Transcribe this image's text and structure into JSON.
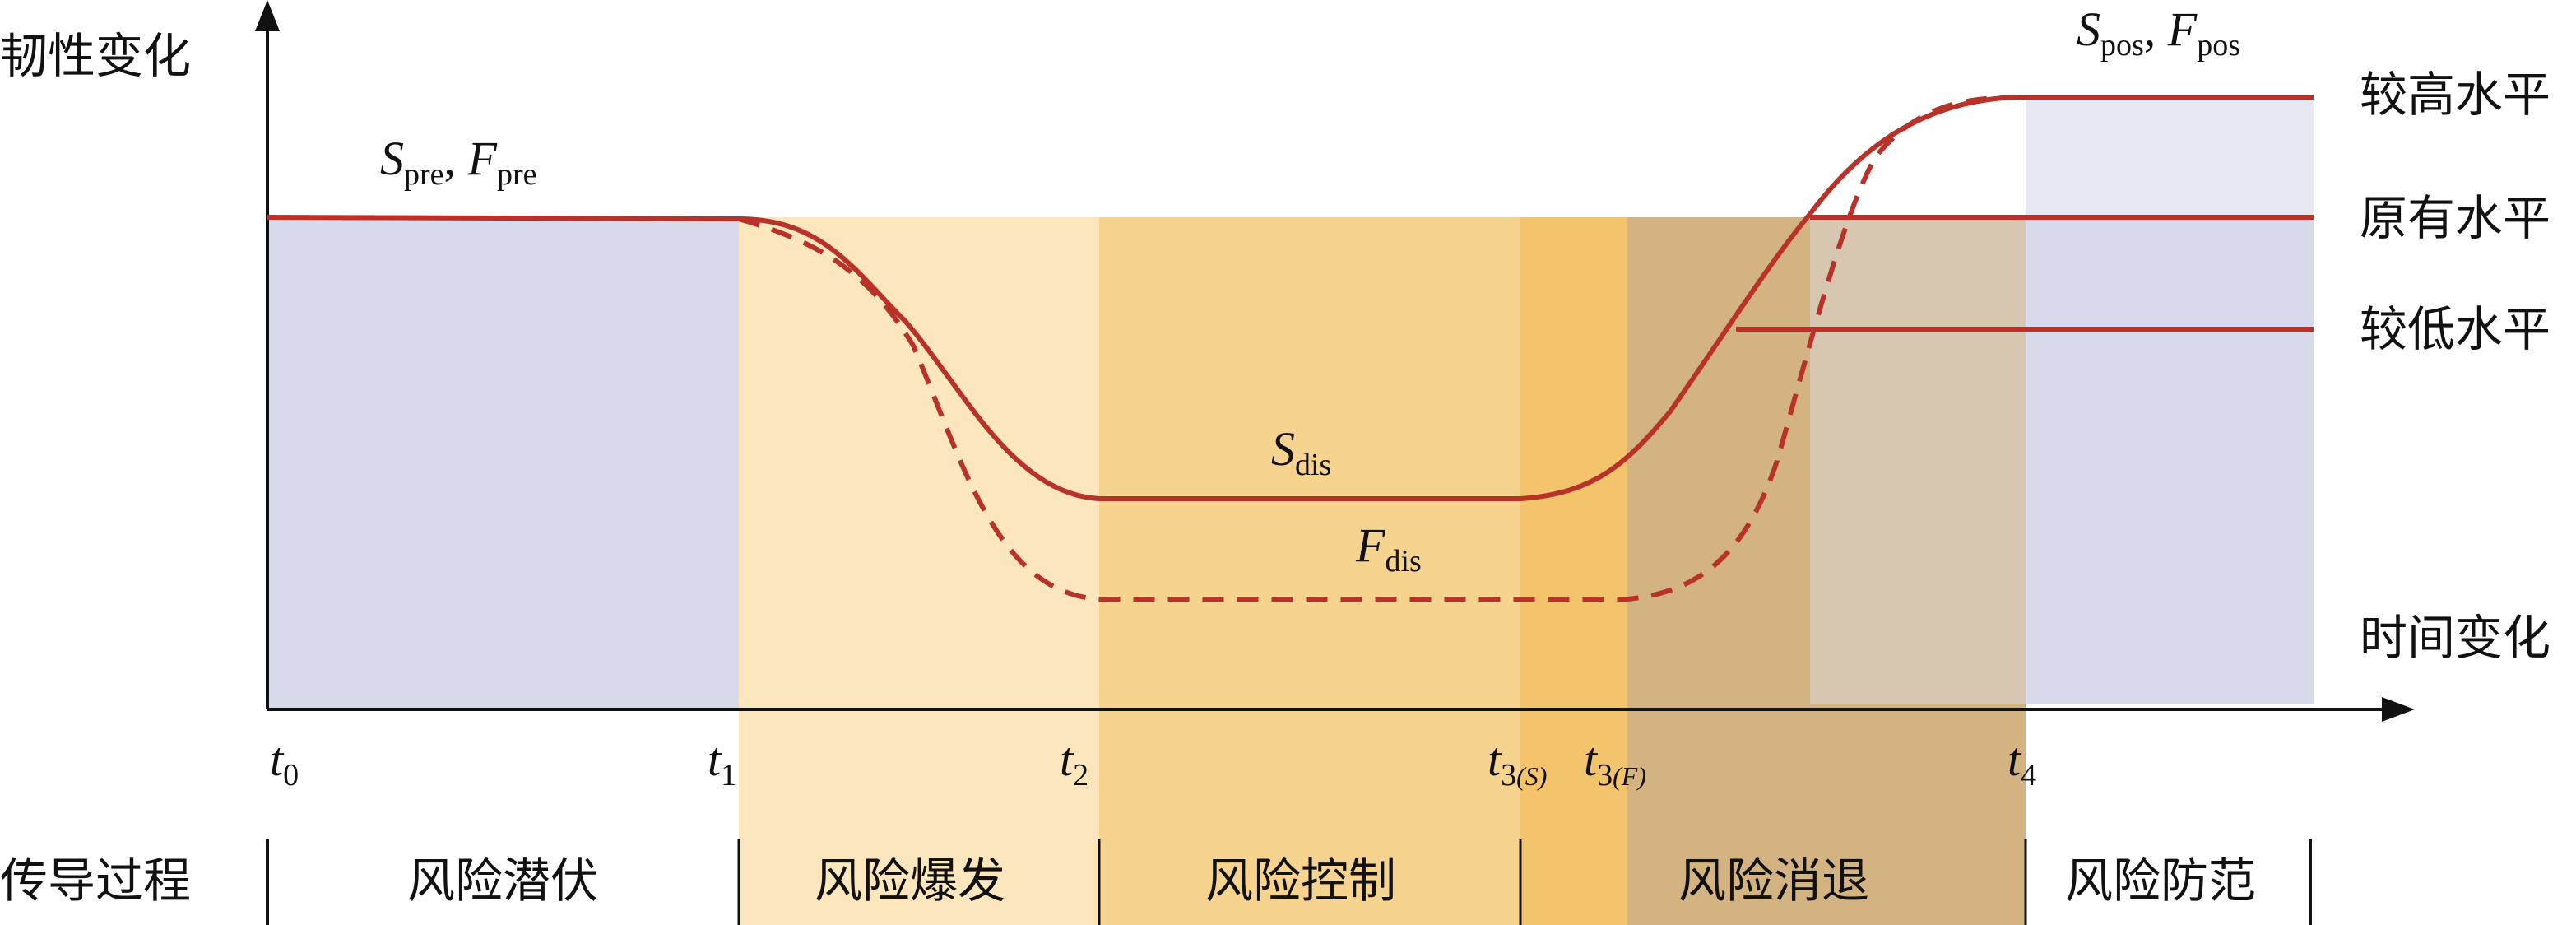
{
  "axis": {
    "y_label": "韧性变化",
    "x_label": "时间变化"
  },
  "levels": {
    "high": "较高水平",
    "original": "原有水平",
    "low": "较低水平"
  },
  "curve_labels": {
    "pre": {
      "s": "S",
      "s_sub": "pre",
      "f": "F",
      "f_sub": "pre"
    },
    "dis_s": {
      "main": "S",
      "sub": "dis"
    },
    "dis_f": {
      "main": "F",
      "sub": "dis"
    },
    "pos": {
      "s": "S",
      "s_sub": "pos",
      "f": "F",
      "f_sub": "pos"
    }
  },
  "time_ticks": {
    "t0": {
      "main": "t",
      "sub": "0"
    },
    "t1": {
      "main": "t",
      "sub": "1"
    },
    "t2": {
      "main": "t",
      "sub": "2"
    },
    "t3s": {
      "main": "t",
      "sub": "3",
      "paren": "(S)"
    },
    "t3f": {
      "main": "t",
      "sub": "3",
      "paren": "(F)"
    },
    "t4": {
      "main": "t",
      "sub": "4"
    }
  },
  "phases": {
    "row_label": "传导过程",
    "latent": "风险潜伏",
    "outbreak": "风险爆发",
    "control": "风险控制",
    "recede": "风险消退",
    "prevent": "风险防范"
  },
  "colors": {
    "curve": "#b8322a",
    "zone_latent": "#d6daea",
    "zone_outbreak": "#fbe6bd",
    "zone_control": "#f6d48f",
    "zone_t3": "#f3c46b",
    "zone_recede": "#d4b383",
    "zone_recede_light": "#d8c7b0",
    "zone_prevent": "#d6daea",
    "zone_prevent_top": "#e7e7f2"
  }
}
